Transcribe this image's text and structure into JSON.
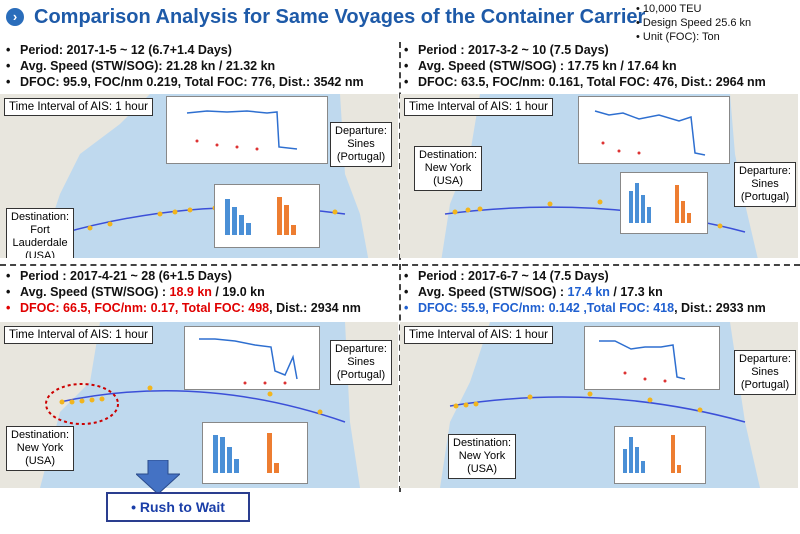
{
  "title": "Comparison Analysis for Same Voyages of the Container Carrier",
  "specs": [
    "10,000 TEU",
    "Design Speed 25.6 kn",
    "Unit (FOC): Ton"
  ],
  "panels": [
    {
      "period": "Period:  2017-1-5  ~ 12 (6.7+1.4 Days)",
      "speed": "Avg. Speed (STW/SOG): 21.28 kn / 21.32 kn",
      "foc": "DFOC: 95.9, FOC/nm 0.219, Total FOC: 776, Dist.: 3542 nm",
      "ais": "Time Interval of AIS: 1 hour",
      "destination": "Destination:\nFort\nLauderdale\n(USA)",
      "departure": "Departure:\nSines\n(Portugal)"
    },
    {
      "period": "Period : 2017-3-2 ~ 10 (7.5 Days)",
      "speed": "Avg. Speed (STW/SOG) : 17.75 kn / 17.64 kn",
      "foc": "DFOC: 63.5, FOC/nm: 0.161, Total FOC: 476, Dist.: 2964 nm",
      "ais": "Time Interval of AIS: 1 hour",
      "destination": "Destination:\nNew York\n(USA)",
      "departure": "Departure:\nSines\n(Portugal)"
    },
    {
      "period": "Period : 2017-4-21 ~ 28 (6+1.5 Days)",
      "speed_prefix": "Avg. Speed (STW/SOG) : ",
      "speed_hl": "18.9 kn",
      "speed_suffix": " / 19.0 kn",
      "foc_hl": "DFOC: 66.5, FOC/nm: 0.17, Total FOC: 498",
      "foc_suffix": ", Dist.: 2934 nm",
      "ais": "Time Interval of AIS: 1 hour",
      "destination": "Destination:\nNew York\n(USA)",
      "departure": "Departure:\nSines\n(Portugal)"
    },
    {
      "period": "Period : 2017-6-7 ~ 14 (7.5 Days)",
      "speed_prefix": "Avg. Speed (STW/SOG) : ",
      "speed_hl": "17.4 kn",
      "speed_suffix": " / 17.3 kn",
      "foc_hl": "DFOC: 55.9, FOC/nm: 0.142 ,Total FOC: 418",
      "foc_suffix": ", Dist.: 2933 nm",
      "ais": "Time Interval of AIS: 1 hour",
      "destination": "Destination:\nNew York\n(USA)",
      "departure": "Departure:\nSines\n(Portugal)"
    }
  ],
  "rush_label": "Rush to Wait",
  "colors": {
    "title": "#1e5aa8",
    "highlight_red": "#e00000",
    "highlight_blue": "#2060d0",
    "route": "#3b4fd8",
    "ais_points": "#f2b51d",
    "ocean": "#bfd9ee",
    "land": "#e8e6de"
  }
}
